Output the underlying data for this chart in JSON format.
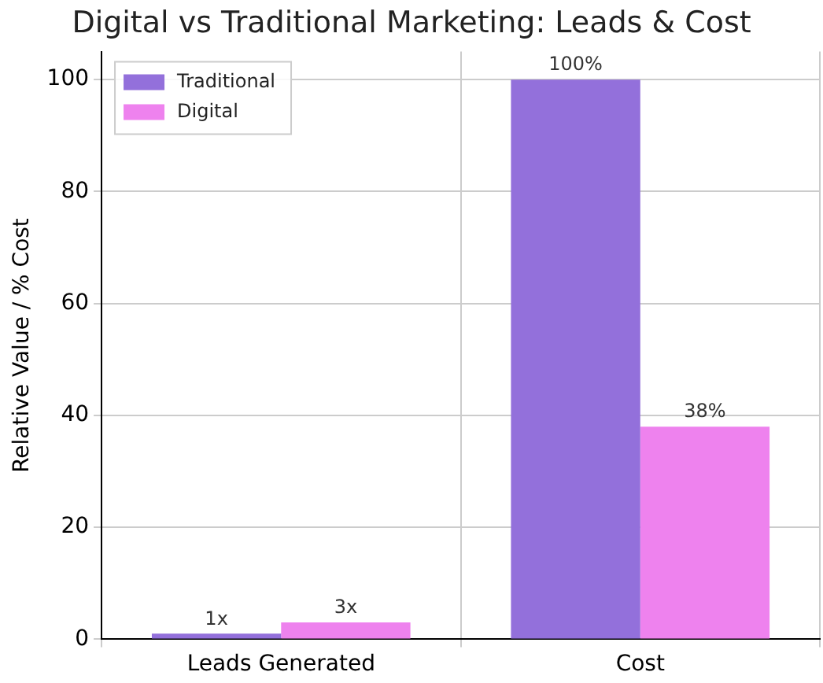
{
  "chart_data": {
    "type": "bar",
    "title": "Digital vs Traditional Marketing: Leads & Cost",
    "ylabel": "Relative Value / % Cost",
    "categories": [
      "Leads Generated",
      "Cost"
    ],
    "series": [
      {
        "name": "Traditional",
        "color": "#9370db",
        "values": [
          1,
          100
        ],
        "value_labels": [
          "1x",
          "100%"
        ]
      },
      {
        "name": "Digital",
        "color": "#ee82ee",
        "values": [
          3,
          38
        ],
        "value_labels": [
          "3x",
          "38%"
        ]
      }
    ],
    "ylim": [
      0,
      105
    ],
    "yticks": [
      0,
      20,
      40,
      60,
      80,
      100
    ],
    "grid": true,
    "legend": "top left"
  }
}
